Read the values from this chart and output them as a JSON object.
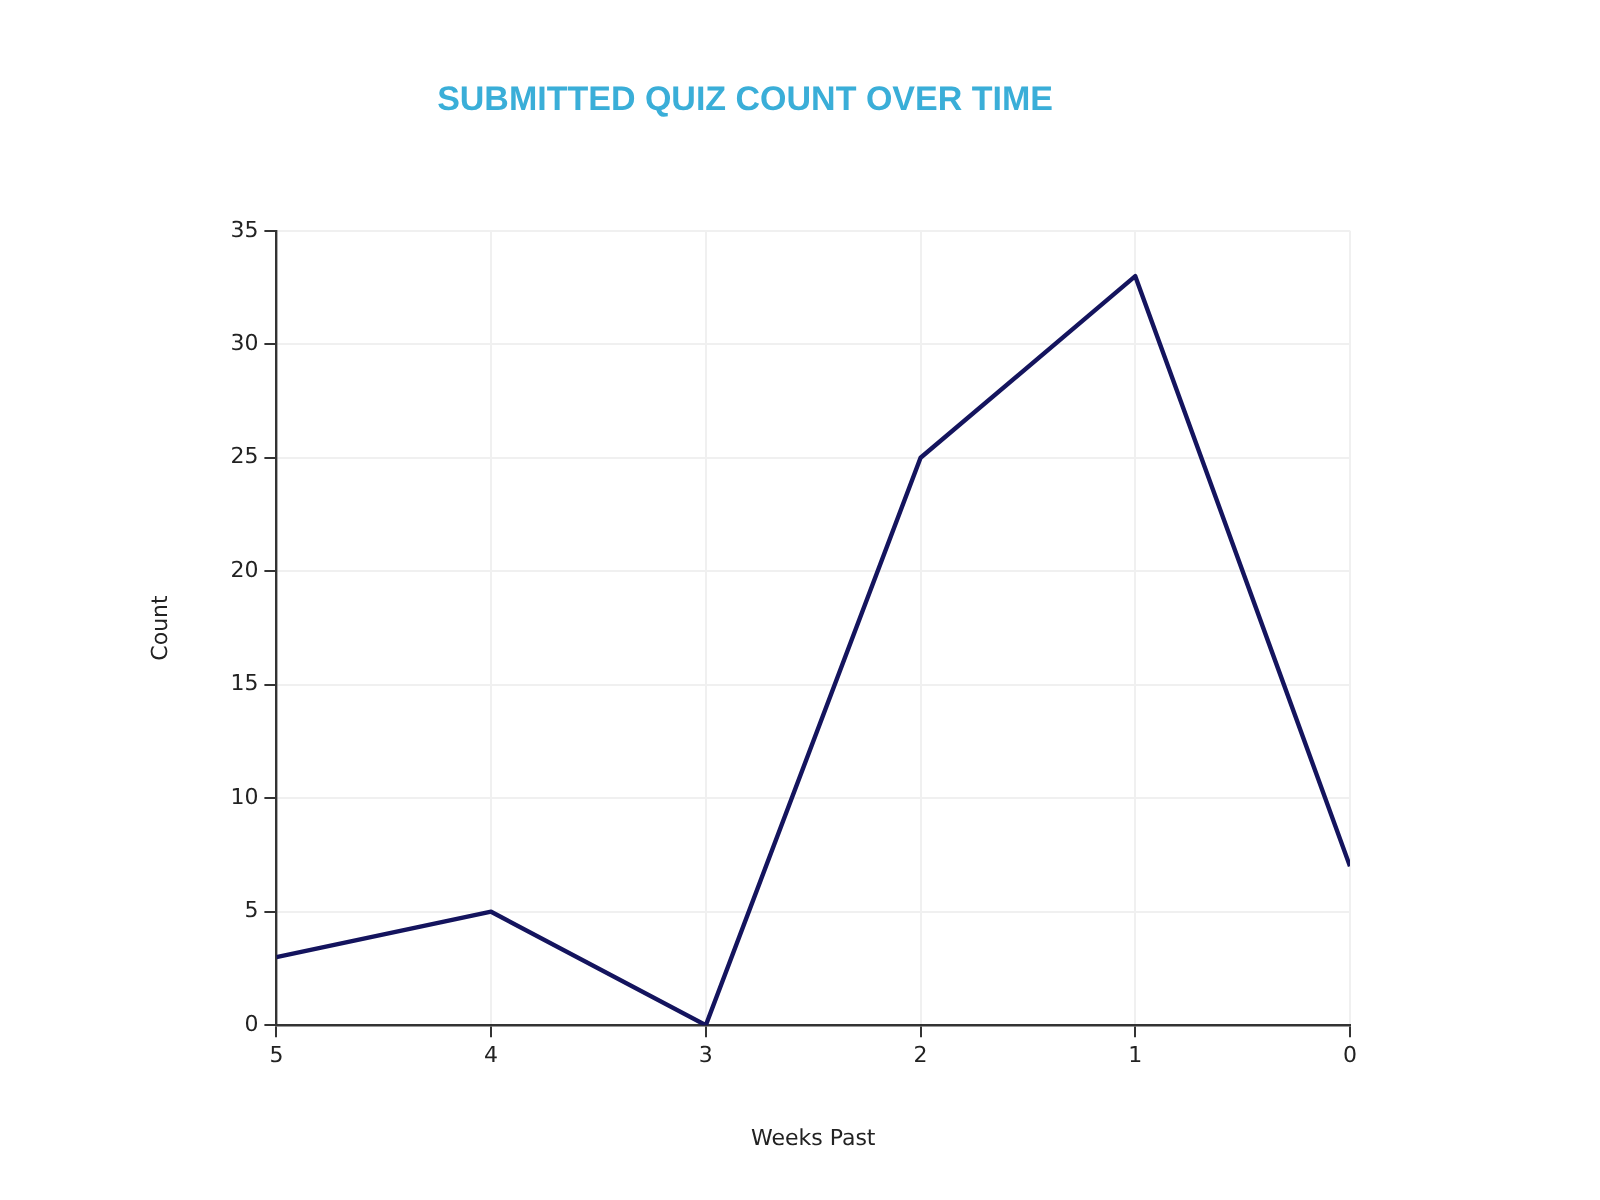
{
  "chart_data": {
    "type": "line",
    "title": "SUBMITTED QUIZ COUNT OVER TIME",
    "xlabel": "Weeks Past",
    "ylabel": "Count",
    "x": [
      5,
      4,
      3,
      2,
      1,
      0
    ],
    "series": [
      {
        "color": "#14145e",
        "values": [
          3,
          5,
          0,
          25,
          33,
          7
        ]
      }
    ],
    "xlim": [
      5,
      0
    ],
    "xticks": [
      5,
      4,
      3,
      2,
      1,
      0
    ],
    "ylim": [
      0,
      35
    ],
    "yticks": [
      0,
      5,
      10,
      15,
      20,
      25,
      30,
      35
    ],
    "grid": true,
    "legend": false,
    "marker": "none"
  }
}
